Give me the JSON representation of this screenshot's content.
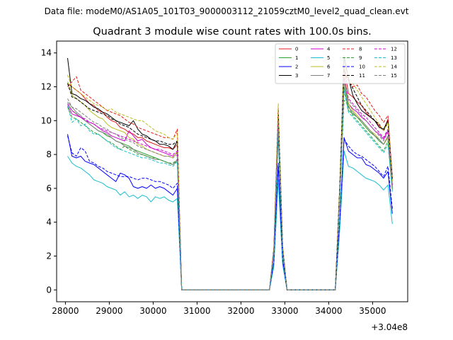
{
  "header": {
    "datafile": "Data file: modeM0/AS1A05_101T03_9000003112_21059cztM0_level2_quad_clean.evt"
  },
  "chart_data": {
    "type": "line",
    "title": "Quadrant 3 module wise count rates with 100.0s bins.",
    "xlabel": "",
    "ylabel": "",
    "offset_text": "+3.04e8",
    "xlim": [
      27800,
      35800
    ],
    "ylim": [
      -0.7,
      14.7
    ],
    "xticks": [
      28000,
      29000,
      30000,
      31000,
      32000,
      33000,
      34000,
      35000
    ],
    "xtick_labels": [
      "28000",
      "29000",
      "30000",
      "31000",
      "32000",
      "33000",
      "34000",
      "35000"
    ],
    "yticks": [
      0,
      2,
      4,
      6,
      8,
      10,
      12,
      14
    ],
    "ytick_labels": [
      "0",
      "2",
      "4",
      "6",
      "8",
      "10",
      "12",
      "14"
    ],
    "legend_location": "upper-right",
    "segment_times": {
      "seg1": [
        28050,
        28150,
        28250,
        28350,
        28450,
        28550,
        28650,
        28750,
        28850,
        28950,
        29050,
        29150,
        29250,
        29350,
        29450,
        29550,
        29650,
        29750,
        29850,
        29950,
        30050,
        30150,
        30250,
        30350,
        30450,
        30550
      ],
      "gap1": [
        30650,
        30750,
        32650
      ],
      "seg2": [
        32750,
        32850,
        32950
      ],
      "gap2": [
        33050,
        34150
      ],
      "seg3": [
        34250,
        34350,
        34450,
        34550,
        34650,
        34750,
        34850,
        34950,
        35050,
        35150,
        35250,
        35350,
        35450
      ]
    },
    "series": [
      {
        "name": "0",
        "color": "#e41a1c",
        "dash": false,
        "seg1": [
          12.2,
          12.0,
          11.8,
          11.6,
          11.3,
          11.0,
          10.9,
          10.6,
          10.5,
          10.2,
          10.0,
          9.9,
          9.6,
          9.5,
          9.3,
          9.2,
          9.0,
          9.0,
          8.8,
          8.7,
          8.6,
          8.5,
          8.4,
          8.4,
          8.3,
          8.6
        ],
        "seg2": [
          2.5,
          10.2,
          2.6
        ],
        "seg3": [
          5.8,
          13.2,
          11.6,
          11.4,
          11.1,
          10.9,
          10.5,
          10.2,
          10.0,
          9.7,
          9.4,
          10.1,
          6.6
        ]
      },
      {
        "name": "1",
        "color": "#2ca02c",
        "dash": false,
        "seg1": [
          11.0,
          10.6,
          10.4,
          10.2,
          10.0,
          9.8,
          9.6,
          9.4,
          9.3,
          9.1,
          9.0,
          8.8,
          8.7,
          8.6,
          8.5,
          8.3,
          8.2,
          8.1,
          8.0,
          7.9,
          7.8,
          7.7,
          7.6,
          7.5,
          7.4,
          7.6
        ],
        "seg2": [
          2.2,
          9.5,
          2.3
        ],
        "seg3": [
          5.3,
          12.0,
          10.6,
          10.4,
          10.2,
          9.9,
          9.6,
          9.3,
          9.1,
          8.8,
          8.6,
          9.0,
          6.0
        ]
      },
      {
        "name": "2",
        "color": "#0000ff",
        "dash": false,
        "seg1": [
          9.2,
          7.9,
          7.8,
          7.9,
          7.6,
          7.5,
          7.4,
          7.2,
          7.0,
          6.8,
          6.6,
          6.4,
          6.9,
          6.8,
          6.6,
          6.1,
          6.0,
          6.1,
          6.0,
          6.2,
          6.0,
          6.1,
          6.0,
          5.8,
          5.6,
          6.0
        ],
        "seg2": [
          1.6,
          7.4,
          1.7
        ],
        "seg3": [
          3.9,
          9.0,
          8.2,
          8.0,
          7.8,
          7.8,
          7.4,
          7.3,
          7.1,
          6.9,
          6.6,
          7.0,
          4.5
        ]
      },
      {
        "name": "3",
        "color": "#000000",
        "dash": false,
        "seg1": [
          13.7,
          11.6,
          11.5,
          11.3,
          11.2,
          11.0,
          10.8,
          10.7,
          10.5,
          10.4,
          10.2,
          10.0,
          9.9,
          9.8,
          9.7,
          10.0,
          9.5,
          9.2,
          9.1,
          8.9,
          8.8,
          8.6,
          8.6,
          8.5,
          8.3,
          8.8
        ],
        "seg2": [
          2.4,
          9.2,
          2.4
        ],
        "seg3": [
          6.0,
          13.8,
          12.5,
          11.5,
          11.0,
          10.6,
          10.4,
          10.2,
          10.0,
          9.6,
          9.5,
          10.0,
          6.6
        ]
      },
      {
        "name": "4",
        "color": "#cc00cc",
        "dash": false,
        "seg1": [
          10.9,
          10.4,
          10.3,
          10.2,
          10.0,
          9.9,
          9.8,
          9.6,
          9.4,
          9.3,
          9.1,
          9.0,
          8.9,
          8.8,
          9.4,
          9.1,
          8.8,
          8.9,
          8.6,
          8.4,
          8.3,
          8.2,
          8.1,
          8.0,
          7.9,
          8.1
        ],
        "seg2": [
          2.3,
          9.8,
          2.4
        ],
        "seg3": [
          5.6,
          12.8,
          11.0,
          10.7,
          10.5,
          10.2,
          10.0,
          9.7,
          9.4,
          9.2,
          8.9,
          9.4,
          6.2
        ]
      },
      {
        "name": "5",
        "color": "#17becf",
        "dash": false,
        "seg1": [
          7.9,
          7.5,
          7.3,
          7.2,
          7.0,
          6.8,
          6.5,
          6.4,
          6.3,
          6.1,
          6.0,
          5.9,
          5.6,
          5.8,
          5.5,
          5.6,
          5.4,
          5.6,
          5.5,
          5.2,
          5.5,
          5.4,
          5.5,
          5.3,
          5.2,
          5.4
        ],
        "seg2": [
          1.4,
          6.5,
          1.5
        ],
        "seg3": [
          3.5,
          8.2,
          7.3,
          7.2,
          7.0,
          6.8,
          6.6,
          6.5,
          6.4,
          6.2,
          5.9,
          6.2,
          3.9
        ]
      },
      {
        "name": "6",
        "color": "#bcbd22",
        "dash": false,
        "seg1": [
          12.3,
          11.5,
          11.3,
          11.1,
          10.9,
          10.6,
          10.4,
          10.2,
          10.1,
          9.8,
          9.6,
          9.5,
          9.4,
          9.3,
          9.0,
          8.9,
          8.6,
          8.5,
          8.3,
          8.2,
          8.1,
          8.0,
          7.9,
          7.9,
          7.8,
          8.2
        ],
        "seg2": [
          2.4,
          10.5,
          2.5
        ],
        "seg3": [
          5.8,
          12.7,
          11.0,
          10.6,
          10.3,
          10.0,
          9.7,
          9.4,
          9.2,
          8.9,
          8.6,
          9.0,
          6.1
        ]
      },
      {
        "name": "7",
        "color": "#7f7f7f",
        "dash": false,
        "seg1": [
          11.1,
          10.8,
          10.5,
          10.3,
          10.0,
          9.8,
          9.6,
          9.4,
          9.3,
          9.2,
          9.0,
          8.8,
          8.7,
          8.5,
          8.4,
          8.3,
          8.1,
          8.0,
          7.9,
          7.8,
          7.7,
          7.7,
          7.6,
          7.5,
          7.4,
          7.7
        ],
        "seg2": [
          2.3,
          9.8,
          2.3
        ],
        "seg3": [
          5.5,
          12.4,
          10.8,
          10.5,
          10.2,
          10.0,
          9.7,
          9.4,
          9.1,
          8.9,
          8.6,
          9.1,
          6.0
        ]
      },
      {
        "name": "8",
        "color": "#e41a1c",
        "dash": true,
        "seg1": [
          12.0,
          12.3,
          12.6,
          11.8,
          11.6,
          11.4,
          11.2,
          11.0,
          10.8,
          10.6,
          10.5,
          10.4,
          10.3,
          10.1,
          9.9,
          9.8,
          9.6,
          9.5,
          9.4,
          9.3,
          9.2,
          9.1,
          9.0,
          9.0,
          8.9,
          9.5
        ],
        "seg2": [
          2.5,
          10.7,
          2.6
        ],
        "seg3": [
          6.0,
          12.8,
          12.4,
          12.0,
          12.1,
          11.6,
          11.4,
          11.0,
          10.6,
          10.3,
          9.9,
          10.3,
          6.6
        ]
      },
      {
        "name": "9",
        "color": "#2ca02c",
        "dash": true,
        "seg1": [
          10.8,
          10.2,
          10.1,
          9.9,
          9.7,
          9.5,
          9.3,
          9.2,
          9.0,
          8.8,
          8.7,
          8.5,
          8.3,
          8.5,
          8.3,
          8.2,
          8.0,
          8.0,
          7.9,
          7.8,
          7.8,
          7.7,
          7.6,
          7.5,
          7.5,
          7.7
        ],
        "seg2": [
          2.2,
          9.6,
          2.3
        ],
        "seg3": [
          5.4,
          11.2,
          10.9,
          10.3,
          10.0,
          9.7,
          9.4,
          9.1,
          8.8,
          8.5,
          8.2,
          8.8,
          5.9
        ]
      },
      {
        "name": "10",
        "color": "#0000ff",
        "dash": true,
        "seg1": [
          9.1,
          8.1,
          7.9,
          8.4,
          8.2,
          7.6,
          7.5,
          7.3,
          7.2,
          7.0,
          6.9,
          6.8,
          6.7,
          6.7,
          6.7,
          6.6,
          6.5,
          6.6,
          6.6,
          6.5,
          6.4,
          6.4,
          6.3,
          6.2,
          6.0,
          6.3
        ],
        "seg2": [
          1.7,
          7.5,
          1.8
        ],
        "seg3": [
          4.0,
          8.9,
          8.5,
          8.2,
          8.0,
          7.9,
          7.7,
          7.5,
          7.3,
          7.0,
          6.7,
          7.3,
          4.8
        ]
      },
      {
        "name": "11",
        "color": "#000000",
        "dash": true,
        "seg1": [
          12.2,
          11.4,
          11.3,
          11.1,
          10.9,
          10.7,
          10.6,
          10.5,
          10.4,
          10.3,
          10.1,
          10.0,
          9.8,
          9.7,
          9.6,
          9.4,
          9.2,
          9.1,
          9.0,
          8.9,
          8.8,
          8.8,
          8.7,
          8.6,
          8.6,
          8.8
        ],
        "seg2": [
          2.4,
          10.7,
          2.5
        ],
        "seg3": [
          6.0,
          13.0,
          12.4,
          11.9,
          11.4,
          10.9,
          10.6,
          10.3,
          10.0,
          9.8,
          9.4,
          9.9,
          6.5
        ]
      },
      {
        "name": "12",
        "color": "#cc00cc",
        "dash": true,
        "seg1": [
          11.0,
          10.6,
          10.4,
          10.2,
          10.1,
          9.9,
          9.8,
          9.6,
          9.5,
          9.4,
          9.3,
          9.2,
          9.1,
          9.0,
          8.9,
          8.8,
          8.7,
          8.6,
          8.5,
          8.4,
          8.3,
          8.3,
          8.2,
          8.1,
          8.0,
          8.2
        ],
        "seg2": [
          2.3,
          9.9,
          2.4
        ],
        "seg3": [
          5.7,
          12.5,
          11.3,
          11.0,
          10.7,
          10.4,
          10.2,
          9.9,
          9.6,
          9.3,
          9.0,
          9.5,
          6.2
        ]
      },
      {
        "name": "13",
        "color": "#17becf",
        "dash": true,
        "seg1": [
          10.9,
          9.9,
          10.1,
          9.7,
          9.8,
          9.4,
          9.2,
          9.2,
          9.0,
          8.8,
          8.6,
          8.4,
          8.3,
          8.2,
          8.1,
          8.0,
          7.9,
          7.8,
          7.8,
          7.7,
          7.6,
          7.5,
          7.5,
          7.4,
          7.3,
          7.6
        ],
        "seg2": [
          2.1,
          9.4,
          2.2
        ],
        "seg3": [
          5.3,
          11.8,
          10.5,
          10.2,
          9.9,
          9.6,
          9.3,
          9.0,
          8.7,
          8.4,
          8.1,
          8.6,
          5.8
        ]
      },
      {
        "name": "14",
        "color": "#bcbd22",
        "dash": true,
        "seg1": [
          12.7,
          12.0,
          11.8,
          11.6,
          11.4,
          11.2,
          11.0,
          10.9,
          10.8,
          10.6,
          10.7,
          10.5,
          10.4,
          10.3,
          10.2,
          10.1,
          10.0,
          10.0,
          9.8,
          9.6,
          9.4,
          9.3,
          9.2,
          9.0,
          8.9,
          9.3
        ],
        "seg2": [
          2.5,
          11.0,
          2.6
        ],
        "seg3": [
          6.1,
          13.3,
          12.6,
          12.2,
          11.8,
          11.4,
          11.0,
          10.6,
          10.2,
          9.8,
          9.4,
          9.9,
          6.4
        ]
      },
      {
        "name": "15",
        "color": "#7f7f7f",
        "dash": true,
        "seg1": [
          11.3,
          10.8,
          10.7,
          10.5,
          10.3,
          10.1,
          9.9,
          9.8,
          9.6,
          9.5,
          9.3,
          9.2,
          9.0,
          8.9,
          8.8,
          8.7,
          8.5,
          8.4,
          8.3,
          8.2,
          8.1,
          8.0,
          7.9,
          7.9,
          7.8,
          8.0
        ],
        "seg2": [
          2.3,
          10.0,
          2.4
        ],
        "seg3": [
          5.6,
          12.4,
          11.2,
          10.9,
          10.6,
          10.3,
          10.0,
          9.7,
          9.4,
          9.1,
          8.8,
          9.3,
          6.1
        ]
      }
    ]
  }
}
